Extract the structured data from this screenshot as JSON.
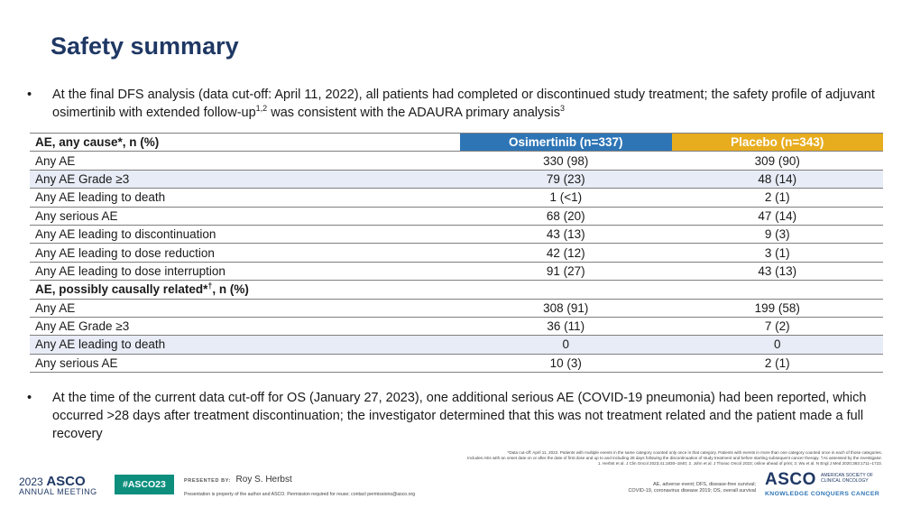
{
  "title": "Safety summary",
  "bullet_marker": "•",
  "bullet1": {
    "part1": "At the final DFS analysis (data cut-off: April 11, 2022), all patients had completed or discontinued study treatment; the safety profile of adjuvant osimertinib with extended follow-up",
    "sup1": "1,2",
    "part2": " was consistent with the ADAURA primary analysis",
    "sup2": "3"
  },
  "table": {
    "header": {
      "label": "AE, any cause*, n (%)",
      "col1": "Osimertinib (n=337)",
      "col2": "Placebo (n=343)"
    },
    "section1": [
      {
        "label": "Any AE",
        "osimertinib": "330 (98)",
        "placebo": "309 (90)"
      },
      {
        "label": "Any AE Grade ≥3",
        "osimertinib": "79 (23)",
        "placebo": "48 (14)"
      },
      {
        "label": "Any AE leading to death",
        "osimertinib": "1 (<1)",
        "placebo": "2 (1)"
      },
      {
        "label": "Any serious AE",
        "osimertinib": "68 (20)",
        "placebo": "47 (14)"
      },
      {
        "label": "Any AE leading to discontinuation",
        "osimertinib": "43 (13)",
        "placebo": "9 (3)"
      },
      {
        "label": "Any AE leading to dose reduction",
        "osimertinib": "42 (12)",
        "placebo": "3 (1)"
      },
      {
        "label": "Any AE leading to dose interruption",
        "osimertinib": "91 (27)",
        "placebo": "43 (13)"
      }
    ],
    "subheader": {
      "label_start": "AE, possibly causally related*",
      "label_sup": "†",
      "label_end": ", n (%)"
    },
    "section2": [
      {
        "label": "Any AE",
        "osimertinib": "308 (91)",
        "placebo": "199 (58)"
      },
      {
        "label": "Any AE Grade ≥3",
        "osimertinib": "36 (11)",
        "placebo": "7 (2)"
      },
      {
        "label": "Any AE leading to death",
        "osimertinib": "0",
        "placebo": "0"
      },
      {
        "label": "Any serious AE",
        "osimertinib": "10 (3)",
        "placebo": "2 (1)"
      }
    ]
  },
  "bullet2": "At the time of the current data cut-off for OS (January 27, 2023), one additional serious AE (COVID-19 pneumonia) had been reported, which occurred >28 days after treatment discontinuation; the investigator determined that this was not treatment related and the patient made a full recovery",
  "footnote": {
    "line1": "*Data cut-off: April 11, 2022. Patients with multiple events in the same category counted only once in that category. Patients with events in more than one category counted once in each of those categories.",
    "line2": "Includes AEs with an onset date on or after the date of first dose and up to and including 28 days following the discontinuation of study treatment and before starting subsequent cancer therapy. †As assessed by the investigator.",
    "line3": "1. Herbst et al. J Clin Oncol 2023;41:1830–1840; 2. John et al. J Thorac Oncol 2023; online ahead of print; 3. Wu et al. N Engl J Med 2020;383:1711–1723."
  },
  "footer": {
    "year": "2023",
    "asco": "ASCO",
    "meeting": "ANNUAL MEETING",
    "hashtag": "#ASCO23",
    "presented_by": "PRESENTED BY:",
    "presenter": "Roy S. Herbst",
    "permission": "Presentation is property of the author and ASCO. Permission required for reuse; contact permissions@asco.org",
    "abbr_line1": "AE, adverse event; DFS, disease-free survival;",
    "abbr_line2": "COVID-19, coronavirus disease 2019; OS, overall survival",
    "logo_main": "ASCO",
    "logo_society": "AMERICAN SOCIETY OF CLINICAL ONCOLOGY",
    "logo_tagline": "KNOWLEDGE CONQUERS CANCER"
  }
}
